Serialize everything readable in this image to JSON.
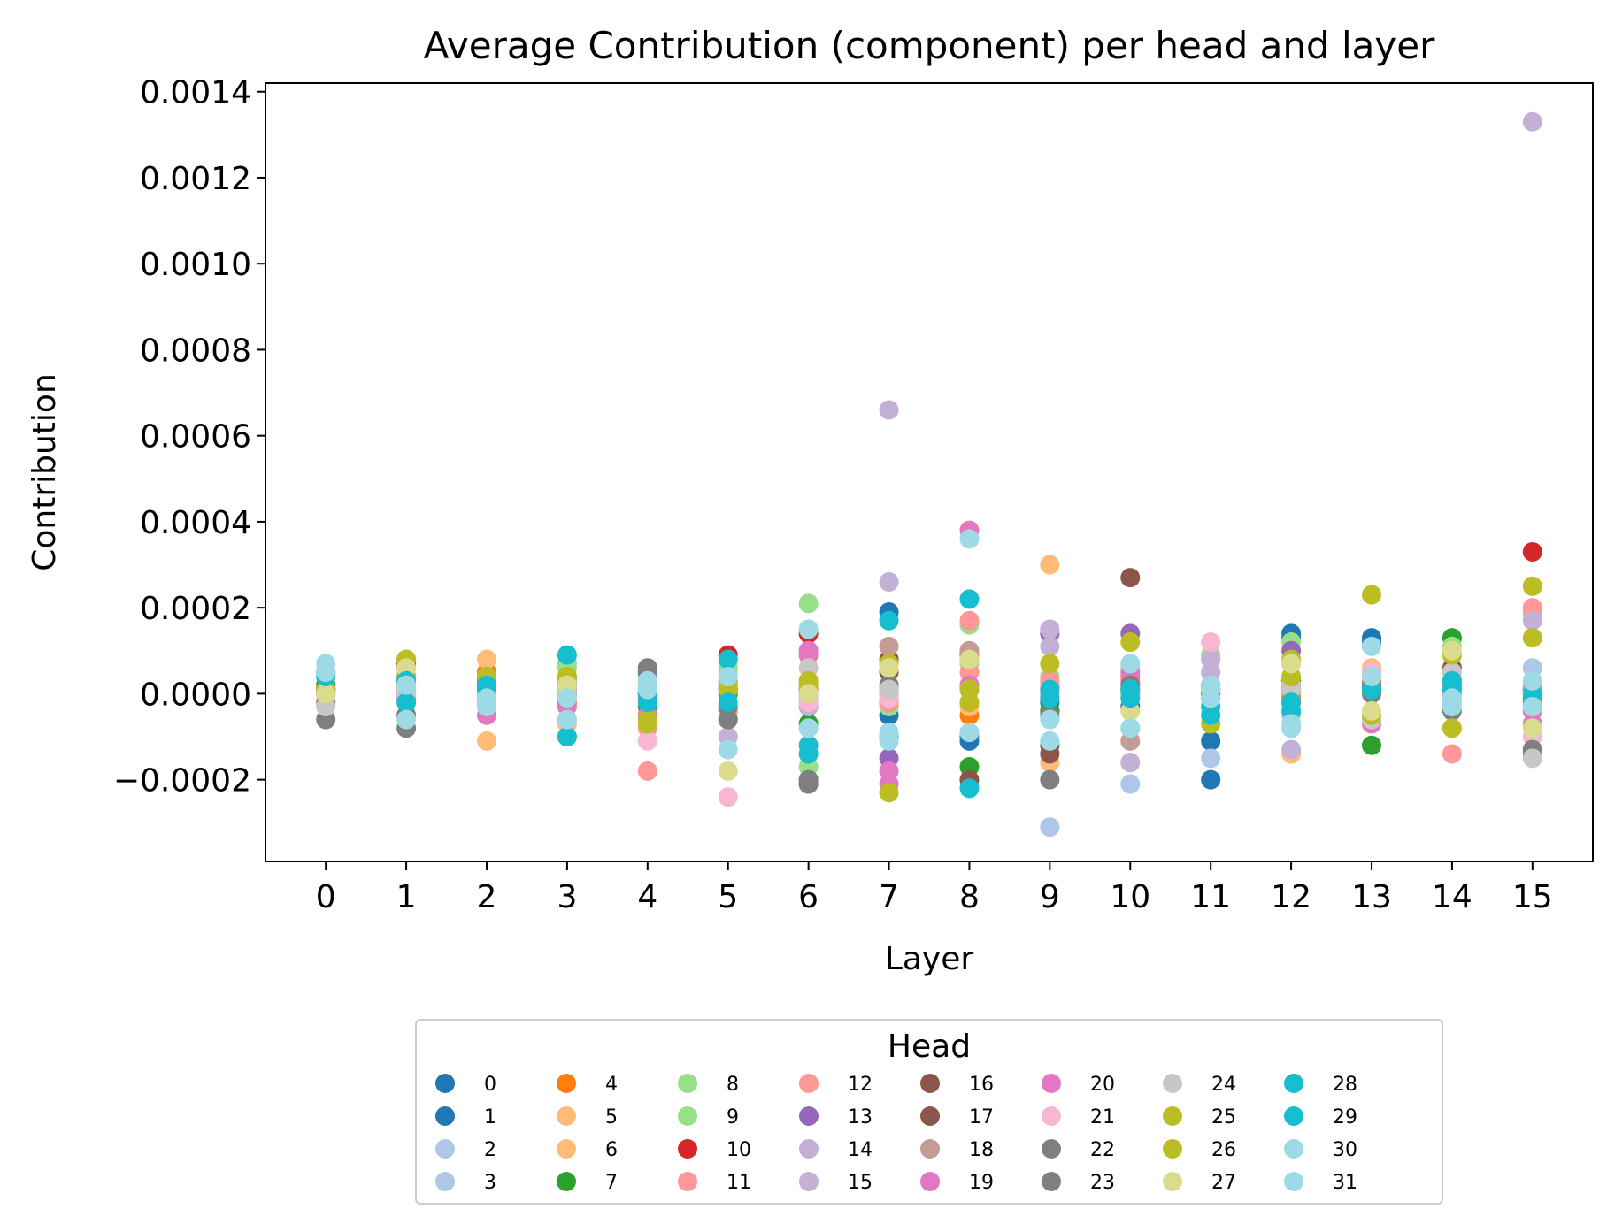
{
  "chart_data": {
    "type": "scatter",
    "title": "Average Contribution (component) per head and layer",
    "xlabel": "Layer",
    "ylabel": "Contribution",
    "categories": [
      "0",
      "1",
      "2",
      "3",
      "4",
      "5",
      "6",
      "7",
      "8",
      "9",
      "10",
      "11",
      "12",
      "13",
      "14",
      "15"
    ],
    "xlim": [
      -0.75,
      15.75
    ],
    "ylim": [
      -0.00039,
      0.00142
    ],
    "yticks": [
      -0.0002,
      0.0,
      0.0002,
      0.0004,
      0.0006,
      0.0008,
      0.001,
      0.0012,
      0.0014
    ],
    "ytick_labels": [
      "−0.0002",
      "0.0000",
      "0.0002",
      "0.0004",
      "0.0006",
      "0.0008",
      "0.0010",
      "0.0012",
      "0.0014"
    ],
    "grid": false,
    "legend": {
      "title": "Head",
      "placement": "bottom-center",
      "ncol": 8
    },
    "series": [
      {
        "name": "0",
        "color": "#1f77b4",
        "values": [
          5e-05,
          4e-05,
          2e-05,
          3e-05,
          2e-05,
          -6e-05,
          -0.0002,
          0.00019,
          -0.0001,
          -2e-05,
          -3e-05,
          -0.00011,
          0.00014,
          0.00013,
          2e-05,
          -3e-05
        ]
      },
      {
        "name": "1",
        "color": "#1f77b4",
        "values": [
          2e-05,
          0.0,
          -1e-05,
          1e-05,
          -1e-05,
          -4e-05,
          -0.00021,
          -5e-05,
          -0.00011,
          -4e-05,
          1e-05,
          -0.0002,
          0.00013,
          0.00012,
          1e-05,
          2e-05
        ]
      },
      {
        "name": "2",
        "color": "#aec7e8",
        "values": [
          0.0,
          2e-05,
          1e-05,
          2e-05,
          1e-05,
          -3e-05,
          -2e-05,
          -2e-05,
          -2e-05,
          -0.00031,
          -0.00021,
          -0.00015,
          -5e-05,
          0.0,
          0.0,
          6e-05
        ]
      },
      {
        "name": "3",
        "color": "#aec7e8",
        "values": [
          1e-05,
          -1e-05,
          0.0,
          0.0,
          0.0,
          2e-05,
          -1e-05,
          0.0,
          1e-05,
          1e-05,
          1e-05,
          -1e-05,
          0.0,
          1e-05,
          -2e-05,
          1e-05
        ]
      },
      {
        "name": "4",
        "color": "#ff7f0e",
        "values": [
          0.0,
          7e-05,
          5e-05,
          -2e-05,
          -3e-05,
          3e-05,
          2e-05,
          -2e-05,
          -5e-05,
          -0.00012,
          4e-05,
          2e-05,
          -1e-05,
          3e-05,
          1e-05,
          -2e-05
        ]
      },
      {
        "name": "5",
        "color": "#ffbb78",
        "values": [
          1e-05,
          7e-05,
          8e-05,
          -7e-05,
          6e-05,
          2e-05,
          3e-05,
          -1e-05,
          -3e-05,
          0.0003,
          2e-05,
          0.0,
          -0.00014,
          6e-05,
          3e-05,
          0.0
        ]
      },
      {
        "name": "6",
        "color": "#ffbb78",
        "values": [
          0.0,
          3e-05,
          -0.00011,
          -6e-05,
          4e-05,
          5e-05,
          1e-05,
          1e-05,
          2e-05,
          -0.00016,
          1e-05,
          1e-05,
          1e-05,
          0.0,
          1e-05,
          2e-05
        ]
      },
      {
        "name": "7",
        "color": "#2ca02c",
        "values": [
          2e-05,
          2e-05,
          1e-05,
          3e-05,
          -3e-05,
          0.0,
          -7e-05,
          -2e-05,
          -0.00017,
          -4e-05,
          0.0,
          0.0,
          3e-05,
          -0.00012,
          0.00013,
          1e-05
        ]
      },
      {
        "name": "8",
        "color": "#98df8a",
        "values": [
          1e-05,
          4e-05,
          3e-05,
          6e-05,
          4e-05,
          6e-05,
          0.00021,
          -2e-05,
          0.00016,
          4e-05,
          0.0,
          9e-05,
          0.00012,
          2e-05,
          0.00011,
          2e-05
        ]
      },
      {
        "name": "9",
        "color": "#98df8a",
        "values": [
          0.0,
          -5e-05,
          2e-05,
          7e-05,
          -2e-05,
          2e-05,
          -0.00017,
          -3e-05,
          7e-05,
          2e-05,
          6e-05,
          1e-05,
          2e-05,
          1e-05,
          3e-05,
          -1e-05
        ]
      },
      {
        "name": "10",
        "color": "#d62728",
        "values": [
          1e-05,
          3e-05,
          3e-05,
          1e-05,
          0.0,
          9e-05,
          0.00014,
          -2e-05,
          1e-05,
          2e-05,
          2e-05,
          1e-05,
          1e-05,
          1e-05,
          1e-05,
          0.00033
        ]
      },
      {
        "name": "11",
        "color": "#ff9896",
        "values": [
          0.0,
          2e-05,
          -3e-05,
          2e-05,
          -0.00018,
          3e-05,
          1e-05,
          -2e-05,
          0.00017,
          2e-05,
          2e-05,
          1e-05,
          -2e-05,
          1e-05,
          -0.00014,
          0.0002
        ]
      },
      {
        "name": "12",
        "color": "#ff9896",
        "values": [
          1e-05,
          0.0,
          -2e-05,
          -1e-05,
          -8e-05,
          -4e-05,
          9e-05,
          -1e-05,
          5e-05,
          3e-05,
          1e-05,
          0.0,
          2e-05,
          1e-05,
          1e-05,
          0.00019
        ]
      },
      {
        "name": "13",
        "color": "#9467bd",
        "values": [
          1e-05,
          1e-05,
          1e-05,
          1e-05,
          0.0,
          1e-05,
          -3e-05,
          -0.00015,
          9e-05,
          0.00014,
          0.00014,
          2e-05,
          0.0001,
          2e-05,
          1e-05,
          -1e-05
        ]
      },
      {
        "name": "14",
        "color": "#c5b0d5",
        "values": [
          0.0,
          0.0,
          0.0,
          3e-05,
          2e-05,
          -0.0001,
          -3e-05,
          0.00066,
          1e-05,
          0.00015,
          -0.00016,
          8e-05,
          -0.00013,
          1e-05,
          1e-05,
          0.00133
        ]
      },
      {
        "name": "15",
        "color": "#c5b0d5",
        "values": [
          1e-05,
          1e-05,
          0.0,
          2e-05,
          1e-05,
          1e-05,
          -2e-05,
          0.00026,
          1e-05,
          0.00011,
          1e-05,
          5e-05,
          1e-05,
          2e-05,
          2e-05,
          0.00017
        ]
      },
      {
        "name": "16",
        "color": "#8c564b",
        "values": [
          0.0,
          7e-05,
          4e-05,
          1e-05,
          5e-05,
          1e-05,
          1e-05,
          5e-05,
          -0.0002,
          -0.00014,
          0.00027,
          1e-05,
          1e-05,
          2e-05,
          6e-05,
          1e-05
        ]
      },
      {
        "name": "17",
        "color": "#8c564b",
        "values": [
          1e-05,
          6e-05,
          2e-05,
          0.0,
          0.0,
          1e-05,
          0.0,
          8e-05,
          1e-05,
          -0.00012,
          1e-05,
          0.0,
          1e-05,
          1e-05,
          1e-05,
          1e-05
        ]
      },
      {
        "name": "18",
        "color": "#c49c94",
        "values": [
          0.0,
          1e-05,
          1e-05,
          2e-05,
          1e-05,
          2e-05,
          1e-05,
          0.00011,
          0.0001,
          1e-05,
          -0.00011,
          2e-05,
          1e-05,
          1e-05,
          1e-05,
          1e-05
        ]
      },
      {
        "name": "19",
        "color": "#e377c2",
        "values": [
          0.0,
          0.0,
          -5e-05,
          -3e-05,
          -1e-05,
          2e-05,
          9e-05,
          -0.00021,
          0.00038,
          0.0,
          3e-05,
          1e-05,
          -2e-05,
          2e-05,
          0.0,
          -4e-05
        ]
      },
      {
        "name": "20",
        "color": "#e377c2",
        "values": [
          1e-05,
          -1e-05,
          -3e-05,
          2e-05,
          -5e-05,
          3e-05,
          0.0001,
          -0.00018,
          2e-05,
          1e-05,
          5e-05,
          1e-05,
          1e-05,
          -7e-05,
          1e-05,
          -7e-05
        ]
      },
      {
        "name": "21",
        "color": "#f7b6d2",
        "values": [
          0.0,
          0.0,
          -2e-05,
          0.0,
          -0.00011,
          -0.00024,
          -2e-05,
          -1e-05,
          1e-05,
          1e-05,
          1e-05,
          0.00012,
          2e-05,
          5e-05,
          1e-05,
          -0.0001
        ]
      },
      {
        "name": "22",
        "color": "#7f7f7f",
        "values": [
          -6e-05,
          -8e-05,
          4e-05,
          -0.0001,
          5e-05,
          -6e-05,
          -0.0002,
          2e-05,
          1e-05,
          -0.0002,
          -8e-05,
          1e-05,
          1e-05,
          2e-05,
          -4e-05,
          -0.00014
        ]
      },
      {
        "name": "23",
        "color": "#7f7f7f",
        "values": [
          -2e-05,
          -5e-05,
          3e-05,
          1e-05,
          6e-05,
          -3e-05,
          -0.00021,
          1e-05,
          1e-05,
          -5e-05,
          2e-05,
          1e-05,
          1e-05,
          0.0,
          3e-05,
          -0.00013
        ]
      },
      {
        "name": "24",
        "color": "#c7c7c7",
        "values": [
          -3e-05,
          1e-05,
          0.0,
          1e-05,
          1e-05,
          1e-05,
          6e-05,
          1e-05,
          1e-05,
          1e-05,
          1e-05,
          1e-05,
          1e-05,
          -6e-05,
          5e-05,
          -0.00015
        ]
      },
      {
        "name": "25",
        "color": "#bcbd22",
        "values": [
          0.0,
          8e-05,
          4e-05,
          4e-05,
          -6e-05,
          1e-05,
          2e-05,
          -0.00023,
          1e-05,
          -1e-05,
          0.00012,
          -7e-05,
          4e-05,
          0.00023,
          9e-05,
          0.00025
        ]
      },
      {
        "name": "26",
        "color": "#bcbd22",
        "values": [
          1e-05,
          4e-05,
          1e-05,
          4e-05,
          -7e-05,
          2e-05,
          3e-05,
          7e-05,
          -2e-05,
          7e-05,
          -4e-05,
          -1e-05,
          8e-05,
          -5e-05,
          -8e-05,
          0.00013
        ]
      },
      {
        "name": "27",
        "color": "#dbdb8d",
        "values": [
          0.0,
          6e-05,
          2e-05,
          2e-05,
          1e-05,
          -0.00018,
          0.0,
          6e-05,
          8e-05,
          1e-05,
          -4e-05,
          1e-05,
          7e-05,
          -4e-05,
          0.0001,
          -8e-05
        ]
      },
      {
        "name": "28",
        "color": "#17becf",
        "values": [
          4e-05,
          3e-05,
          2e-05,
          9e-05,
          0.0,
          8e-05,
          -0.00014,
          0.00017,
          0.00022,
          -1e-05,
          1e-05,
          -5e-05,
          -4e-05,
          1e-05,
          1e-05,
          0.0
        ]
      },
      {
        "name": "29",
        "color": "#17becf",
        "values": [
          5e-05,
          -2e-05,
          1e-05,
          -0.0001,
          -2e-05,
          -2e-05,
          -0.00012,
          -0.0001,
          -0.00022,
          1e-05,
          -1e-05,
          -3e-05,
          -2e-05,
          1e-05,
          3e-05,
          -2e-05
        ]
      },
      {
        "name": "30",
        "color": "#9edae5",
        "values": [
          7e-05,
          2e-05,
          -1e-05,
          -1e-05,
          1e-05,
          4e-05,
          0.00015,
          -9e-05,
          0.00036,
          -0.00011,
          7e-05,
          2e-05,
          -8e-05,
          0.00011,
          -1e-05,
          3e-05
        ]
      },
      {
        "name": "31",
        "color": "#9edae5",
        "values": [
          5e-05,
          -6e-05,
          -3e-05,
          -6e-05,
          3e-05,
          -0.00013,
          -8e-05,
          -0.00011,
          -9e-05,
          -6e-05,
          -8e-05,
          -1e-05,
          -7e-05,
          4e-05,
          -3e-05,
          -3e-05
        ]
      }
    ]
  }
}
